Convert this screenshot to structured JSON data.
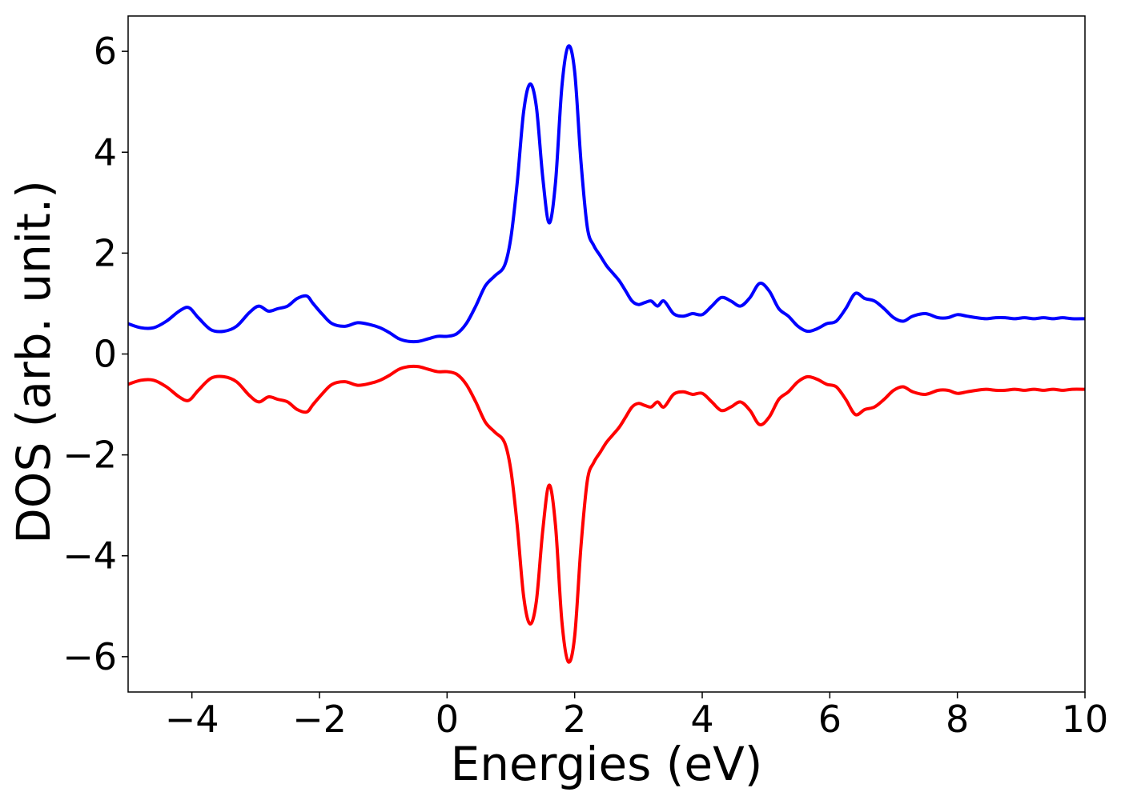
{
  "chart_data": {
    "type": "line",
    "title": "",
    "xlabel": "Energies (eV)",
    "ylabel": "DOS (arb. unit.)",
    "xlim": [
      -5,
      10
    ],
    "ylim": [
      -6.7,
      6.7
    ],
    "x_ticks": [
      -4,
      -2,
      0,
      2,
      4,
      6,
      8,
      10
    ],
    "x_tick_labels": [
      "−4",
      "−2",
      "0",
      "2",
      "4",
      "6",
      "8",
      "10"
    ],
    "y_ticks": [
      -6,
      -4,
      -2,
      0,
      2,
      4,
      6
    ],
    "y_tick_labels": [
      "−6",
      "−4",
      "−2",
      "0",
      "2",
      "4",
      "6"
    ],
    "grid": false,
    "series": [
      {
        "color": "#0000ff",
        "x": [
          -5.0,
          -4.8,
          -4.6,
          -4.4,
          -4.2,
          -4.05,
          -3.9,
          -3.7,
          -3.5,
          -3.3,
          -3.1,
          -2.95,
          -2.8,
          -2.65,
          -2.5,
          -2.35,
          -2.2,
          -2.1,
          -1.95,
          -1.8,
          -1.6,
          -1.4,
          -1.2,
          -1.05,
          -0.9,
          -0.75,
          -0.6,
          -0.45,
          -0.3,
          -0.15,
          0.0,
          0.15,
          0.3,
          0.45,
          0.6,
          0.75,
          0.9,
          1.0,
          1.1,
          1.2,
          1.3,
          1.4,
          1.5,
          1.6,
          1.7,
          1.8,
          1.9,
          2.0,
          2.1,
          2.2,
          2.3,
          2.4,
          2.5,
          2.6,
          2.7,
          2.8,
          2.9,
          3.0,
          3.1,
          3.2,
          3.3,
          3.4,
          3.55,
          3.7,
          3.85,
          4.0,
          4.15,
          4.3,
          4.45,
          4.6,
          4.75,
          4.9,
          5.05,
          5.2,
          5.35,
          5.5,
          5.65,
          5.8,
          5.95,
          6.1,
          6.25,
          6.4,
          6.55,
          6.7,
          6.85,
          7.0,
          7.15,
          7.3,
          7.5,
          7.7,
          7.85,
          8.0,
          8.15,
          8.3,
          8.45,
          8.6,
          8.75,
          8.9,
          9.05,
          9.2,
          9.35,
          9.5,
          9.65,
          9.8,
          10.0
        ],
        "y": [
          0.6,
          0.52,
          0.52,
          0.65,
          0.85,
          0.92,
          0.72,
          0.48,
          0.45,
          0.55,
          0.82,
          0.95,
          0.85,
          0.9,
          0.95,
          1.1,
          1.15,
          1.0,
          0.78,
          0.6,
          0.55,
          0.62,
          0.58,
          0.52,
          0.42,
          0.3,
          0.25,
          0.25,
          0.3,
          0.35,
          0.35,
          0.4,
          0.6,
          0.95,
          1.35,
          1.55,
          1.75,
          2.3,
          3.4,
          4.8,
          5.35,
          4.9,
          3.5,
          2.6,
          3.4,
          5.3,
          6.1,
          5.6,
          3.8,
          2.5,
          2.15,
          1.95,
          1.75,
          1.6,
          1.45,
          1.25,
          1.05,
          0.98,
          1.02,
          1.05,
          0.95,
          1.05,
          0.8,
          0.75,
          0.8,
          0.78,
          0.95,
          1.12,
          1.05,
          0.95,
          1.12,
          1.4,
          1.25,
          0.9,
          0.75,
          0.55,
          0.45,
          0.5,
          0.6,
          0.65,
          0.9,
          1.2,
          1.1,
          1.05,
          0.9,
          0.72,
          0.65,
          0.75,
          0.8,
          0.72,
          0.72,
          0.78,
          0.75,
          0.72,
          0.7,
          0.72,
          0.72,
          0.7,
          0.72,
          0.7,
          0.72,
          0.7,
          0.72,
          0.7,
          0.7
        ]
      },
      {
        "color": "#ff0000",
        "x": [
          -5.0,
          -4.8,
          -4.6,
          -4.4,
          -4.2,
          -4.05,
          -3.9,
          -3.7,
          -3.5,
          -3.3,
          -3.1,
          -2.95,
          -2.8,
          -2.65,
          -2.5,
          -2.35,
          -2.2,
          -2.1,
          -1.95,
          -1.8,
          -1.6,
          -1.4,
          -1.2,
          -1.05,
          -0.9,
          -0.75,
          -0.6,
          -0.45,
          -0.3,
          -0.15,
          0.0,
          0.15,
          0.3,
          0.45,
          0.6,
          0.75,
          0.9,
          1.0,
          1.1,
          1.2,
          1.3,
          1.4,
          1.5,
          1.6,
          1.7,
          1.8,
          1.9,
          2.0,
          2.1,
          2.2,
          2.3,
          2.4,
          2.5,
          2.6,
          2.7,
          2.8,
          2.9,
          3.0,
          3.1,
          3.2,
          3.3,
          3.4,
          3.55,
          3.7,
          3.85,
          4.0,
          4.15,
          4.3,
          4.45,
          4.6,
          4.75,
          4.9,
          5.05,
          5.2,
          5.35,
          5.5,
          5.65,
          5.8,
          5.95,
          6.1,
          6.25,
          6.4,
          6.55,
          6.7,
          6.85,
          7.0,
          7.15,
          7.3,
          7.5,
          7.7,
          7.85,
          8.0,
          8.15,
          8.3,
          8.45,
          8.6,
          8.75,
          8.9,
          9.05,
          9.2,
          9.35,
          9.5,
          9.65,
          9.8,
          10.0
        ],
        "y": [
          -0.6,
          -0.52,
          -0.52,
          -0.65,
          -0.85,
          -0.92,
          -0.72,
          -0.48,
          -0.45,
          -0.55,
          -0.82,
          -0.95,
          -0.85,
          -0.9,
          -0.95,
          -1.1,
          -1.15,
          -1.0,
          -0.78,
          -0.6,
          -0.55,
          -0.62,
          -0.58,
          -0.52,
          -0.42,
          -0.3,
          -0.25,
          -0.25,
          -0.3,
          -0.35,
          -0.35,
          -0.4,
          -0.6,
          -0.95,
          -1.35,
          -1.55,
          -1.75,
          -2.3,
          -3.4,
          -4.8,
          -5.35,
          -4.9,
          -3.5,
          -2.6,
          -3.4,
          -5.3,
          -6.1,
          -5.6,
          -3.8,
          -2.5,
          -2.15,
          -1.95,
          -1.75,
          -1.6,
          -1.45,
          -1.25,
          -1.05,
          -0.98,
          -1.02,
          -1.05,
          -0.95,
          -1.05,
          -0.8,
          -0.75,
          -0.8,
          -0.78,
          -0.95,
          -1.12,
          -1.05,
          -0.95,
          -1.12,
          -1.4,
          -1.25,
          -0.9,
          -0.75,
          -0.55,
          -0.45,
          -0.5,
          -0.6,
          -0.65,
          -0.9,
          -1.2,
          -1.1,
          -1.05,
          -0.9,
          -0.72,
          -0.65,
          -0.75,
          -0.8,
          -0.72,
          -0.72,
          -0.78,
          -0.75,
          -0.72,
          -0.7,
          -0.72,
          -0.72,
          -0.7,
          -0.72,
          -0.7,
          -0.72,
          -0.7,
          -0.72,
          -0.7,
          -0.7
        ]
      }
    ]
  }
}
